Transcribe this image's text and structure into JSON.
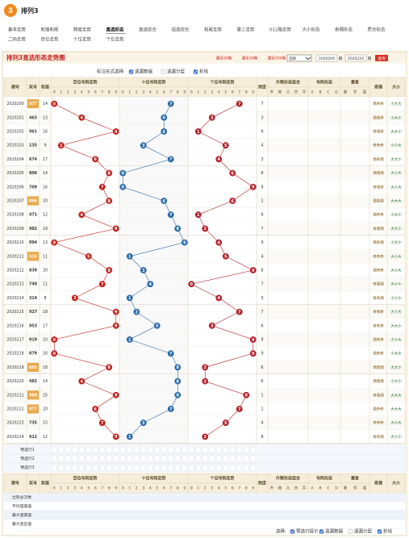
{
  "header": {
    "logo": "3",
    "title": "排列3"
  },
  "nav": {
    "active": 3,
    "rows": [
      [
        "基本走势",
        "和值和尾",
        "跨度走势",
        "直选形态",
        "直选综合",
        "组选综合",
        "和尾走势",
        "第三走势",
        "012路走势",
        "大小形态",
        "奇偶形态",
        "质合形态"
      ],
      [
        "二码走势",
        "百位走势",
        "十位走势",
        "个位走势"
      ]
    ]
  },
  "panel": {
    "title": "排列3直选形态走势图",
    "quick": [
      "最近50期",
      "最近30期",
      "最近100期"
    ],
    "select": "选择",
    "from": "2020200",
    "from_unit": "期",
    "to": "2020224",
    "to_unit": "期",
    "button": "查询"
  },
  "mark_options": {
    "label": "标注形式选择:",
    "items": [
      {
        "text": "遗漏数据",
        "checked": true
      },
      {
        "text": "遗漏分层",
        "checked": false
      },
      {
        "text": "折线",
        "checked": true
      }
    ]
  },
  "table": {
    "head": {
      "issue": "期号",
      "number": "奖号",
      "sum": "和值",
      "grids": [
        "百位号码走势",
        "十位号码走势",
        "个位号码走势"
      ],
      "digits": [
        0,
        1,
        2,
        3,
        4,
        5,
        6,
        7,
        8,
        9
      ],
      "span": "跨度",
      "updown": "升降形态组合",
      "updown_sub": [
        "升",
        "降",
        "凸",
        "凹",
        "平"
      ],
      "shape": "号码形态",
      "shape_sub": [
        "A",
        "B",
        "C",
        "D"
      ],
      "repeat": "重复",
      "repeat_sub": [
        "重",
        "邻",
        "孤"
      ],
      "parity": "奇偶",
      "size": "大小"
    },
    "rows": [
      {
        "issue": "2020200",
        "number": "077",
        "sum": 14,
        "digits": [
          0,
          7,
          7
        ],
        "span": 7,
        "parity": "偶奇奇",
        "size": "小大大"
      },
      {
        "issue": "2020201",
        "number": "463",
        "sum": 13,
        "digits": [
          4,
          6,
          3
        ],
        "span": 3,
        "parity": "偶偶奇",
        "size": "小大小"
      },
      {
        "issue": "2020202",
        "number": "961",
        "sum": 16,
        "digits": [
          9,
          6,
          1
        ],
        "span": 8,
        "parity": "奇偶奇",
        "size": "大大小"
      },
      {
        "issue": "2020203",
        "number": "135",
        "sum": 9,
        "digits": [
          1,
          3,
          5
        ],
        "span": 4,
        "parity": "奇奇奇",
        "size": "小小大"
      },
      {
        "issue": "2020204",
        "number": "674",
        "sum": 17,
        "digits": [
          6,
          7,
          4
        ],
        "span": 3,
        "parity": "偶奇偶",
        "size": "大大小"
      },
      {
        "issue": "2020205",
        "number": "806",
        "sum": 14,
        "digits": [
          8,
          0,
          6
        ],
        "span": 8,
        "parity": "偶偶偶",
        "size": "大小大"
      },
      {
        "issue": "2020206",
        "number": "709",
        "sum": 16,
        "digits": [
          7,
          0,
          9
        ],
        "span": 9,
        "parity": "奇偶奇",
        "size": "大小大"
      },
      {
        "issue": "2020207",
        "number": "866",
        "sum": 20,
        "digits": [
          8,
          6,
          6
        ],
        "span": 2,
        "parity": "偶偶偶",
        "size": "大大大"
      },
      {
        "issue": "2020208",
        "number": "471",
        "sum": 12,
        "digits": [
          4,
          7,
          1
        ],
        "span": 6,
        "parity": "偶奇奇",
        "size": "小大小"
      },
      {
        "issue": "2020209",
        "number": "982",
        "sum": 19,
        "digits": [
          9,
          8,
          2
        ],
        "span": 7,
        "parity": "奇偶偶",
        "size": "大大小"
      },
      {
        "issue": "2020210",
        "number": "094",
        "sum": 13,
        "digits": [
          0,
          9,
          4
        ],
        "span": 9,
        "parity": "偶奇偶",
        "size": "小大小"
      },
      {
        "issue": "2020211",
        "number": "515",
        "sum": 11,
        "digits": [
          5,
          1,
          5
        ],
        "span": 4,
        "parity": "奇奇奇",
        "size": "大小大"
      },
      {
        "issue": "2020212",
        "number": "839",
        "sum": 20,
        "digits": [
          8,
          3,
          9
        ],
        "span": 6,
        "parity": "偶奇奇",
        "size": "大小大"
      },
      {
        "issue": "2020213",
        "number": "740",
        "sum": 11,
        "digits": [
          7,
          4,
          0
        ],
        "span": 7,
        "parity": "奇偶偶",
        "size": "大小小"
      },
      {
        "issue": "2020214",
        "number": "314",
        "sum": 8,
        "digits": [
          3,
          1,
          4
        ],
        "span": 3,
        "parity": "奇奇偶",
        "size": "小小小"
      },
      {
        "issue": "2020215",
        "number": "927",
        "sum": 18,
        "digits": [
          9,
          2,
          7
        ],
        "span": 7,
        "parity": "奇偶奇",
        "size": "大小大"
      },
      {
        "issue": "2020216",
        "number": "953",
        "sum": 17,
        "digits": [
          9,
          5,
          3
        ],
        "span": 6,
        "parity": "奇奇奇",
        "size": "大大小"
      },
      {
        "issue": "2020217",
        "number": "019",
        "sum": 10,
        "digits": [
          0,
          1,
          9
        ],
        "span": 9,
        "parity": "偶奇奇",
        "size": "小小大"
      },
      {
        "issue": "2020218",
        "number": "079",
        "sum": 16,
        "digits": [
          0,
          7,
          9
        ],
        "span": 9,
        "parity": "偶奇奇",
        "size": "小大大"
      },
      {
        "issue": "2020219",
        "number": "882",
        "sum": 18,
        "digits": [
          8,
          8,
          2
        ],
        "span": 6,
        "parity": "偶偶偶",
        "size": "大大小"
      },
      {
        "issue": "2020220",
        "number": "482",
        "sum": 14,
        "digits": [
          4,
          8,
          2
        ],
        "span": 6,
        "parity": "偶偶偶",
        "size": "小大小"
      },
      {
        "issue": "2020221",
        "number": "988",
        "sum": 25,
        "digits": [
          9,
          8,
          8
        ],
        "span": 1,
        "parity": "奇偶偶",
        "size": "大大大"
      },
      {
        "issue": "2020222",
        "number": "677",
        "sum": 20,
        "digits": [
          6,
          7,
          7
        ],
        "span": 1,
        "parity": "偶奇奇",
        "size": "大大大"
      },
      {
        "issue": "2020223",
        "number": "735",
        "sum": 15,
        "digits": [
          7,
          3,
          5
        ],
        "span": 4,
        "parity": "奇奇奇",
        "size": "大小大"
      },
      {
        "issue": "2020224",
        "number": "912",
        "sum": 12,
        "digits": [
          9,
          1,
          2
        ],
        "span": 8,
        "parity": "奇奇偶",
        "size": "大小小"
      }
    ],
    "preselect": [
      "预选行1",
      "预选行2",
      "预选行3"
    ],
    "stats": [
      "出现总次数",
      "平均遗漏值",
      "最大遗漏值",
      "最大连出值"
    ]
  },
  "footer": {
    "label": "选择:",
    "items": [
      {
        "text": "预选行提示",
        "checked": true
      },
      {
        "text": "遗漏数据",
        "checked": true
      },
      {
        "text": "遗漏分层",
        "checked": false
      },
      {
        "text": "折线",
        "checked": true
      }
    ]
  }
}
